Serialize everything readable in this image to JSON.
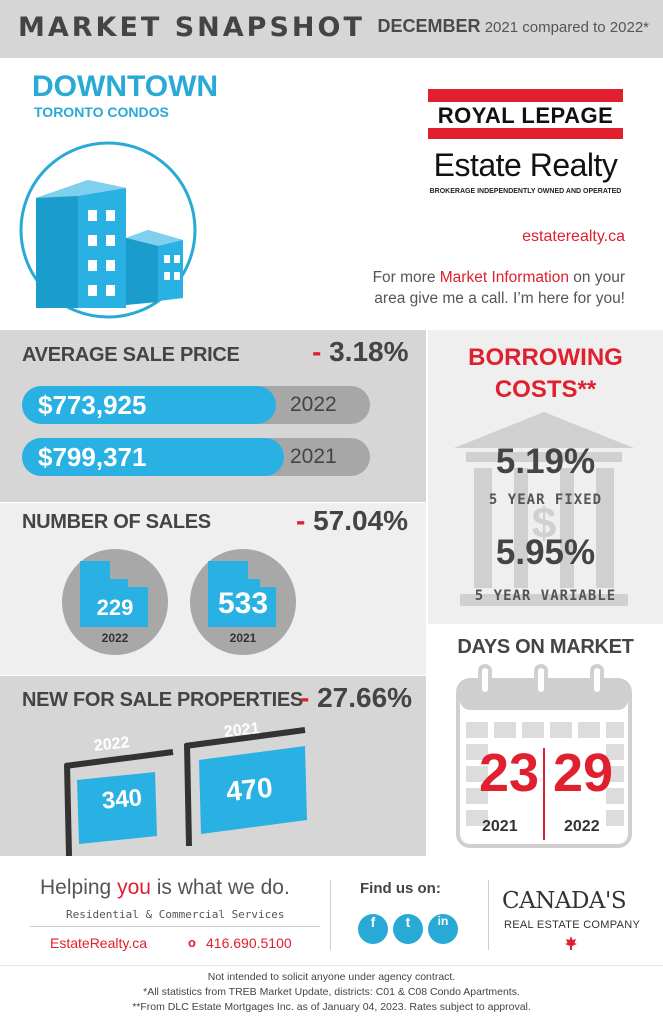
{
  "header": {
    "title": "MARKET SNAPSHOT",
    "date_month": "DECEMBER",
    "date_rest": "2021 compared to 2022*"
  },
  "region": {
    "line1": "DOWNTOWN",
    "line2": "TORONTO CONDOS"
  },
  "brand": {
    "name": "ROYAL LEPAGE",
    "sub_name": "Estate Realty",
    "tagline": "BROKERAGE INDEPENDENTLY OWNED AND OPERATED",
    "site": "estaterealty.ca",
    "info_pre": "For more ",
    "info_highlight": "Market Information",
    "info_post": " on your",
    "info_line2": "area give me a call. I’m here for you!",
    "red": "#e0202e",
    "blue": "#29a9d6"
  },
  "avg_price": {
    "label": "AVERAGE SALE PRICE",
    "change_sign": "- ",
    "change": "3.18%",
    "rows": [
      {
        "value": "$773,925",
        "year": "2022",
        "fill": 0.968
      },
      {
        "value": "$799,371",
        "year": "2021",
        "fill": 1.0
      }
    ]
  },
  "sales": {
    "label": "NUMBER OF SALES",
    "change_sign": "- ",
    "change": "57.04%",
    "items": [
      {
        "value": "229",
        "year": "2022"
      },
      {
        "value": "533",
        "year": "2021"
      }
    ]
  },
  "new_listings": {
    "label": "NEW FOR SALE PROPERTIES",
    "change_sign": "- ",
    "change": "27.66%",
    "items": [
      {
        "value": "340",
        "year": "2022"
      },
      {
        "value": "470",
        "year": "2021"
      }
    ]
  },
  "borrowing": {
    "title_line1": "BORROWING",
    "title_line2": "COSTS**",
    "fixed_rate": "5.19%",
    "fixed_label": "5 YEAR FIXED",
    "variable_rate": "5.95%",
    "variable_label": "5 YEAR VARIABLE"
  },
  "dom": {
    "label": "DAYS ON MARKET",
    "items": [
      {
        "value": "23",
        "year": "2021"
      },
      {
        "value": "29",
        "year": "2022"
      }
    ]
  },
  "footer": {
    "slogan_pre": "Helping ",
    "slogan_you": "you",
    "slogan_post": " is what we do.",
    "services": "Residential & Commercial Services",
    "site": "EstateRealty.ca",
    "phone_icon": "o",
    "phone": "416.690.5100",
    "find_us": "Find us on:",
    "social": [
      "f",
      "t",
      "in"
    ],
    "canada_line1": "CANADA'S",
    "canada_line2": "REAL ESTATE COMPANY"
  },
  "disclaimer": [
    "Not intended to solicit anyone under agency contract.",
    "*All statistics from TREB Market Update, districts: C01 & C08 Condo Apartments.",
    "**From DLC Estate Mortgages Inc. as of January 04, 2023. Rates subject to approval."
  ]
}
